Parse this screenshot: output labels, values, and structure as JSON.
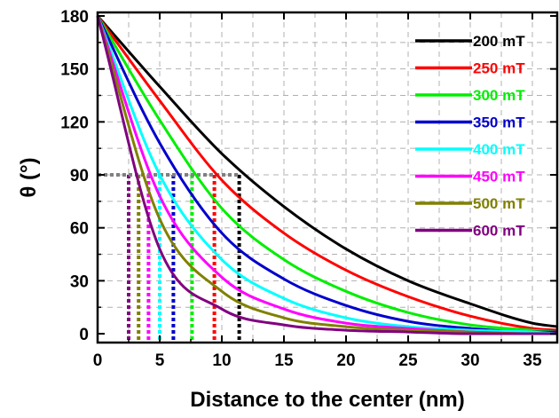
{
  "chart_data": {
    "type": "line",
    "xlabel": "Distance to the center (nm)",
    "ylabel": "θ (°)",
    "xlim": [
      0,
      37
    ],
    "ylim": [
      -5,
      182
    ],
    "xticks": [
      "0",
      "5",
      "10",
      "15",
      "20",
      "25",
      "30",
      "35"
    ],
    "yticks": [
      "0",
      "30",
      "60",
      "90",
      "120",
      "150",
      "180"
    ],
    "grid": true,
    "legend_position": "top-right",
    "reference_line": {
      "y": 90,
      "style": "dotted",
      "color": "#808080"
    },
    "series": [
      {
        "name": "200 mT",
        "color": "#000000",
        "x_at_90": 11.4,
        "x": [
          0,
          5,
          10,
          15,
          20,
          25,
          30,
          35,
          37
        ],
        "values": [
          180,
          140,
          102,
          72,
          48,
          30,
          17,
          6,
          4
        ]
      },
      {
        "name": "250 mT",
        "color": "#ff0000",
        "x_at_90": 9.4,
        "x": [
          0,
          5,
          10,
          15,
          20,
          25,
          30,
          35,
          37
        ],
        "values": [
          180,
          132,
          87,
          57,
          36,
          21,
          10,
          3,
          2
        ]
      },
      {
        "name": "300 mT",
        "color": "#00ee00",
        "x_at_90": 7.6,
        "x": [
          0,
          5,
          10,
          15,
          20,
          25,
          30,
          35,
          37
        ],
        "values": [
          180,
          121,
          71,
          42,
          24,
          12,
          5,
          2,
          1
        ]
      },
      {
        "name": "350 mT",
        "color": "#0000cc",
        "x_at_90": 6.1,
        "x": [
          0,
          5,
          10,
          15,
          20,
          25,
          30,
          35,
          37
        ],
        "values": [
          180,
          108,
          57,
          31,
          16,
          7,
          3,
          1,
          1
        ]
      },
      {
        "name": "400 mT",
        "color": "#00ffff",
        "x_at_90": 5.0,
        "x": [
          0,
          5,
          10,
          15,
          20,
          25,
          30,
          35,
          37
        ],
        "values": [
          180,
          90,
          42,
          20,
          9,
          4,
          2,
          1,
          0
        ]
      },
      {
        "name": "450 mT",
        "color": "#ff00ff",
        "x_at_90": 4.1,
        "x": [
          0,
          5,
          10,
          15,
          20,
          25,
          30,
          35,
          37
        ],
        "values": [
          180,
          78,
          32,
          14,
          6,
          3,
          1,
          0,
          0
        ]
      },
      {
        "name": "500 mT",
        "color": "#808000",
        "x_at_90": 3.3,
        "x": [
          0,
          5,
          10,
          15,
          20,
          25,
          30,
          35,
          37
        ],
        "values": [
          180,
          65,
          24,
          9,
          4,
          2,
          1,
          0,
          0
        ]
      },
      {
        "name": "600 mT",
        "color": "#800080",
        "x_at_90": 2.5,
        "x": [
          0,
          5,
          10,
          15,
          20,
          25,
          30,
          35,
          37
        ],
        "values": [
          180,
          48,
          14,
          5,
          2,
          1,
          0,
          0,
          0
        ]
      }
    ]
  }
}
